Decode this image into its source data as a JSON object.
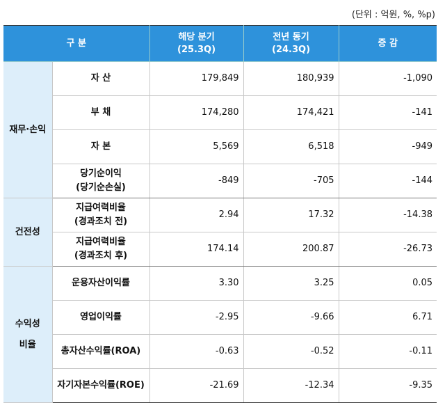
{
  "unit_note": "(단위 : 억원, %, %p)",
  "table": {
    "header": [
      [
        "구 분"
      ],
      [
        "해당 분기",
        "(25.3Q)"
      ],
      [
        "전년 동기",
        "(24.3Q)"
      ],
      [
        "증 감"
      ]
    ],
    "groups": [
      {
        "label": [
          "재무·손익"
        ],
        "rows": [
          {
            "item": [
              "자 산"
            ],
            "values": [
              "179,849",
              "180,939",
              "-1,090"
            ]
          },
          {
            "item": [
              "부 채"
            ],
            "values": [
              "174,280",
              "174,421",
              "-141"
            ]
          },
          {
            "item": [
              "자 본"
            ],
            "values": [
              "5,569",
              "6,518",
              "-949"
            ]
          },
          {
            "item": [
              "당기순이익",
              "(당기순손실)"
            ],
            "values": [
              "-849",
              "-705",
              "-144"
            ]
          }
        ]
      },
      {
        "label": [
          "건전성"
        ],
        "rows": [
          {
            "item": [
              "지급여력비율",
              "(경과조치 전)"
            ],
            "values": [
              "2.94",
              "17.32",
              "-14.38"
            ]
          },
          {
            "item": [
              "지급여력비율",
              "(경과조치 후)"
            ],
            "values": [
              "174.14",
              "200.87",
              "-26.73"
            ]
          }
        ]
      },
      {
        "label": [
          "수익성",
          "비율"
        ],
        "rows": [
          {
            "item": [
              "운용자산이익률"
            ],
            "values": [
              "3.30",
              "3.25",
              "0.05"
            ]
          },
          {
            "item": [
              "영업이익률"
            ],
            "values": [
              "-2.95",
              "-9.66",
              "6.71"
            ]
          },
          {
            "item": [
              "총자산수익률(ROA)"
            ],
            "values": [
              "-0.63",
              "-0.52",
              "-0.11"
            ]
          },
          {
            "item": [
              "자기자본수익률(ROE)"
            ],
            "values": [
              "-21.69",
              "-12.34",
              "-9.35"
            ]
          }
        ]
      }
    ]
  }
}
